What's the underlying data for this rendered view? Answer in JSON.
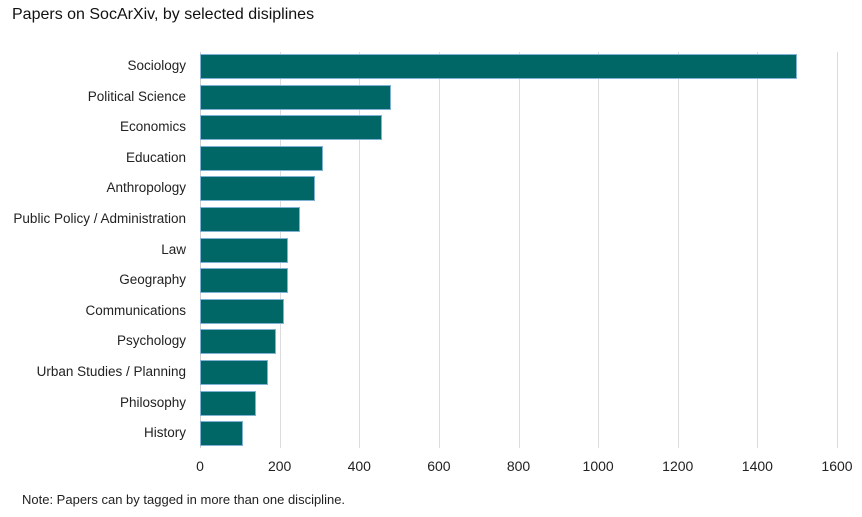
{
  "chart_data": {
    "type": "bar",
    "orientation": "horizontal",
    "title": "Papers on SocArXiv, by selected disiplines",
    "categories": [
      "Sociology",
      "Political Science",
      "Economics",
      "Education",
      "Anthropology",
      "Public Policy / Administration",
      "Law",
      "Geography",
      "Communications",
      "Psychology",
      "Urban Studies / Planning",
      "Philosophy",
      "History"
    ],
    "values": [
      1500,
      480,
      458,
      310,
      290,
      250,
      220,
      220,
      210,
      190,
      170,
      140,
      108
    ],
    "xlabel": "",
    "ylabel": "",
    "xlim": [
      0,
      1600
    ],
    "xticks": [
      0,
      200,
      400,
      600,
      800,
      1000,
      1200,
      1400,
      1600
    ],
    "grid": "vertical",
    "legend": "none",
    "bar_color": "#006666",
    "note": "Note: Papers can by tagged in more than one discipline."
  },
  "ticks": [
    "0",
    "200",
    "400",
    "600",
    "800",
    "1000",
    "1200",
    "1400",
    "1600"
  ]
}
